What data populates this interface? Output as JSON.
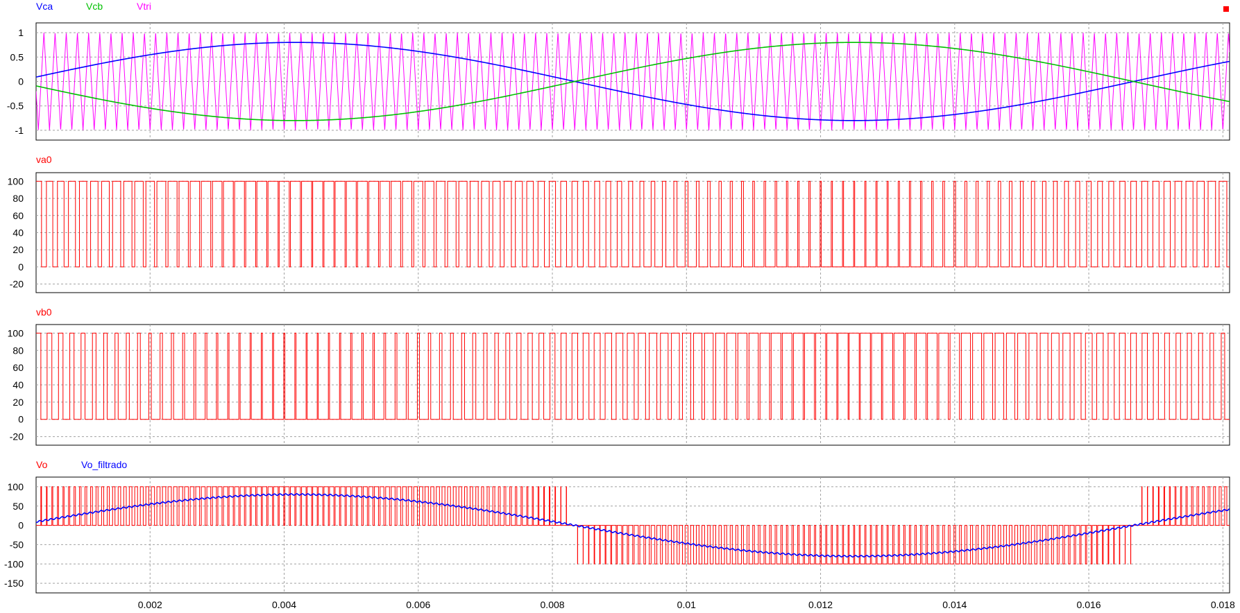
{
  "window": {
    "stop_marker_color": "#ff0000"
  },
  "x_axis": {
    "range": [
      0.0003,
      0.0181
    ],
    "ticks": [
      0.002,
      0.004,
      0.006,
      0.008,
      0.01,
      0.012,
      0.014,
      0.016,
      0.018
    ],
    "tick_labels": [
      "0.002",
      "0.004",
      "0.006",
      "0.008",
      "0.01",
      "0.012",
      "0.014",
      "0.016",
      "0.018"
    ]
  },
  "chart_data": [
    {
      "type": "line",
      "title": "",
      "xlabel": "",
      "ylabel": "",
      "ylim": [
        -1.2,
        1.2
      ],
      "yticks": [
        1,
        0.5,
        0,
        -0.5,
        -1
      ],
      "ytick_labels": [
        "1",
        "0.5",
        "0",
        "-0.5",
        "-1"
      ],
      "grid": true,
      "legend_position": "top-left",
      "series": [
        {
          "name": "Vca",
          "color": "#0000ff",
          "kind": "sine",
          "amplitude": 0.8,
          "frequency_hz": 60,
          "phase_deg": 0
        },
        {
          "name": "Vcb",
          "color": "#00c000",
          "kind": "sine",
          "amplitude": 0.8,
          "frequency_hz": 60,
          "phase_deg": 180
        },
        {
          "name": "Vtri",
          "color": "#ff00ff",
          "kind": "triangle",
          "min": -1,
          "max": 1,
          "frequency_hz": 6000
        }
      ]
    },
    {
      "type": "line",
      "title": "",
      "xlabel": "",
      "ylabel": "",
      "ylim": [
        -30,
        110
      ],
      "yticks": [
        100,
        80,
        60,
        40,
        20,
        0,
        -20
      ],
      "ytick_labels": [
        "100",
        "80",
        "60",
        "40",
        "20",
        "0",
        "-20"
      ],
      "grid": true,
      "legend_position": "top-left",
      "series": [
        {
          "name": "va0",
          "color": "#ff0000",
          "kind": "pwm",
          "low": 0,
          "high": 100,
          "reference": "Vca",
          "carrier": "Vtri"
        }
      ]
    },
    {
      "type": "line",
      "title": "",
      "xlabel": "",
      "ylabel": "",
      "ylim": [
        -30,
        110
      ],
      "yticks": [
        100,
        80,
        60,
        40,
        20,
        0,
        -20
      ],
      "ytick_labels": [
        "100",
        "80",
        "60",
        "40",
        "20",
        "0",
        "-20"
      ],
      "grid": true,
      "legend_position": "top-left",
      "series": [
        {
          "name": "vb0",
          "color": "#ff0000",
          "kind": "pwm",
          "low": 0,
          "high": 100,
          "reference": "Vcb",
          "carrier": "Vtri"
        }
      ]
    },
    {
      "type": "line",
      "title": "",
      "xlabel": "",
      "ylabel": "",
      "ylim": [
        -175,
        125
      ],
      "yticks": [
        100,
        50,
        0,
        -50,
        -100,
        -150
      ],
      "ytick_labels": [
        "100",
        "50",
        "0",
        "-50",
        "-100",
        "-150"
      ],
      "grid": true,
      "legend_position": "top-left",
      "series": [
        {
          "name": "Vo",
          "color": "#ff0000",
          "kind": "difference",
          "of": [
            "va0",
            "vb0"
          ]
        },
        {
          "name": "Vo_filtrado",
          "color": "#0000ff",
          "kind": "sine",
          "amplitude": 80,
          "frequency_hz": 60,
          "phase_deg": 0,
          "ripple": 2
        }
      ]
    }
  ]
}
